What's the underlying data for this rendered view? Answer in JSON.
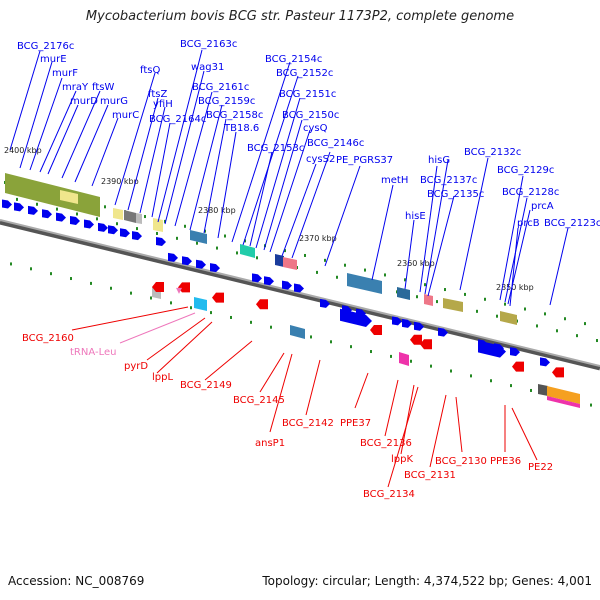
{
  "title": "Mycobacterium bovis BCG str. Pasteur 1173P2, complete genome",
  "footer": {
    "accession": "Accession: NC_008769",
    "info": "Topology: circular; Length: 4,374,522 bp; Genes: 4,001"
  },
  "colors": {
    "forward_gene": "#0000ee",
    "reverse_gene": "#ee0000",
    "trna": "#ee77bb",
    "backbone": "#888888"
  },
  "ticks": [
    "2400 kbp",
    "2390 kbp",
    "2380 kbp",
    "2370 kbp",
    "2360 kbp",
    "2350 kbp"
  ],
  "forward_labels": [
    "BCG_2176c",
    "murE",
    "murF",
    "mraY",
    "murD",
    "ftsW",
    "murG",
    "murC",
    "ftsQ",
    "ftsZ",
    "yfiH",
    "BCG_2164c",
    "BCG_2163c",
    "wag31",
    "BCG_2161c",
    "BCG_2159c",
    "BCG_2158c",
    "TB18.6",
    "BCG_2154c",
    "BCG_2152c",
    "BCG_2151c",
    "BCG_2150c",
    "cysQ",
    "BCG_2153c",
    "BCG_2146c",
    "cysS2",
    "PE_PGRS37",
    "metH",
    "hisG",
    "hisE",
    "BCG_2137c",
    "BCG_2135c",
    "BCG_2132c",
    "BCG_2129c",
    "BCG_2128c",
    "prcA",
    "prcB",
    "BCG_2123c"
  ],
  "reverse_labels": [
    "BCG_2160",
    "tRNA-Leu",
    "pyrD",
    "lppL",
    "BCG_2149",
    "BCG_2145",
    "ansP1",
    "BCG_2142",
    "PPE37",
    "BCG_2136",
    "lppK",
    "BCG_2134",
    "BCG_2131",
    "BCG_2130",
    "PPE36",
    "PE22"
  ]
}
